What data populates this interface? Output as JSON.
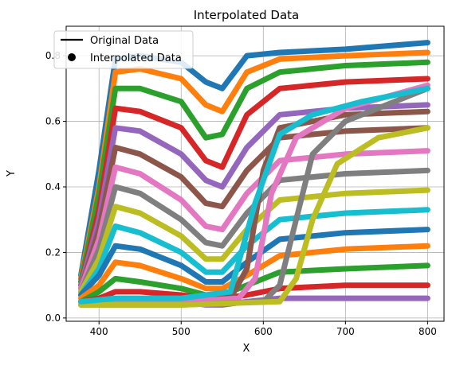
{
  "chart_data": {
    "type": "line",
    "title": "Interpolated Data",
    "xlabel": "X",
    "ylabel": "Y",
    "xlim": [
      360,
      820
    ],
    "ylim": [
      -0.01,
      0.89
    ],
    "xticks": [
      400,
      500,
      600,
      700,
      800
    ],
    "yticks": [
      0.0,
      0.2,
      0.4,
      0.6,
      0.8
    ],
    "grid": true,
    "legend": {
      "placement": "top-left",
      "entries": [
        {
          "label": "Original Data",
          "marker": "line",
          "color": "#000000"
        },
        {
          "label": "Interpolated Data",
          "marker": "dot",
          "color": "#000000"
        }
      ]
    },
    "palette": [
      "#1f77b4",
      "#ff7f0e",
      "#2ca02c",
      "#d62728",
      "#9467bd",
      "#8c564b",
      "#e377c2",
      "#7f7f7f",
      "#bcbd22",
      "#17becf"
    ],
    "x_range": [
      378,
      800
    ],
    "notes_series_count": "many overlapping spectral curves",
    "series": [
      {
        "name": "",
        "x": [
          378,
          400,
          420,
          450,
          500,
          530,
          550,
          580,
          620,
          700,
          800
        ],
        "y": [
          0.13,
          0.45,
          0.79,
          0.8,
          0.78,
          0.72,
          0.7,
          0.8,
          0.81,
          0.82,
          0.84
        ]
      },
      {
        "name": "",
        "x": [
          378,
          400,
          420,
          450,
          500,
          530,
          550,
          580,
          620,
          700,
          800
        ],
        "y": [
          0.12,
          0.4,
          0.75,
          0.76,
          0.73,
          0.65,
          0.63,
          0.75,
          0.79,
          0.8,
          0.81
        ]
      },
      {
        "name": "",
        "x": [
          378,
          400,
          420,
          450,
          500,
          530,
          550,
          580,
          620,
          700,
          800
        ],
        "y": [
          0.11,
          0.38,
          0.7,
          0.7,
          0.66,
          0.55,
          0.56,
          0.7,
          0.75,
          0.77,
          0.78
        ]
      },
      {
        "name": "",
        "x": [
          378,
          400,
          420,
          450,
          500,
          530,
          550,
          580,
          620,
          700,
          800
        ],
        "y": [
          0.1,
          0.33,
          0.64,
          0.63,
          0.58,
          0.48,
          0.46,
          0.62,
          0.7,
          0.72,
          0.73
        ]
      },
      {
        "name": "",
        "x": [
          378,
          400,
          420,
          450,
          500,
          530,
          550,
          580,
          620,
          700,
          800
        ],
        "y": [
          0.1,
          0.3,
          0.58,
          0.57,
          0.5,
          0.42,
          0.4,
          0.52,
          0.62,
          0.64,
          0.65
        ]
      },
      {
        "name": "",
        "x": [
          378,
          400,
          420,
          450,
          500,
          530,
          550,
          580,
          620,
          700,
          800
        ],
        "y": [
          0.09,
          0.27,
          0.52,
          0.5,
          0.43,
          0.35,
          0.34,
          0.45,
          0.55,
          0.57,
          0.58
        ]
      },
      {
        "name": "",
        "x": [
          378,
          400,
          420,
          450,
          500,
          530,
          550,
          580,
          620,
          700,
          800
        ],
        "y": [
          0.09,
          0.24,
          0.46,
          0.44,
          0.36,
          0.28,
          0.27,
          0.38,
          0.48,
          0.5,
          0.51
        ]
      },
      {
        "name": "",
        "x": [
          378,
          400,
          420,
          450,
          500,
          530,
          550,
          580,
          620,
          700,
          800
        ],
        "y": [
          0.08,
          0.21,
          0.4,
          0.38,
          0.3,
          0.23,
          0.22,
          0.32,
          0.42,
          0.44,
          0.45
        ]
      },
      {
        "name": "",
        "x": [
          378,
          400,
          420,
          450,
          500,
          530,
          550,
          580,
          620,
          700,
          800
        ],
        "y": [
          0.08,
          0.18,
          0.34,
          0.32,
          0.25,
          0.18,
          0.18,
          0.27,
          0.36,
          0.38,
          0.39
        ]
      },
      {
        "name": "",
        "x": [
          378,
          400,
          420,
          450,
          500,
          530,
          550,
          580,
          620,
          700,
          800
        ],
        "y": [
          0.07,
          0.15,
          0.28,
          0.26,
          0.2,
          0.14,
          0.14,
          0.22,
          0.3,
          0.32,
          0.33
        ]
      },
      {
        "name": "",
        "x": [
          378,
          400,
          420,
          450,
          500,
          530,
          550,
          580,
          620,
          700,
          800
        ],
        "y": [
          0.07,
          0.13,
          0.22,
          0.21,
          0.16,
          0.11,
          0.11,
          0.17,
          0.24,
          0.26,
          0.27
        ]
      },
      {
        "name": "",
        "x": [
          378,
          400,
          420,
          450,
          500,
          530,
          550,
          580,
          620,
          700,
          800
        ],
        "y": [
          0.06,
          0.1,
          0.17,
          0.16,
          0.12,
          0.09,
          0.09,
          0.13,
          0.19,
          0.21,
          0.22
        ]
      },
      {
        "name": "",
        "x": [
          378,
          400,
          420,
          450,
          500,
          530,
          550,
          580,
          620,
          700,
          800
        ],
        "y": [
          0.05,
          0.08,
          0.12,
          0.11,
          0.09,
          0.07,
          0.07,
          0.1,
          0.14,
          0.15,
          0.16
        ]
      },
      {
        "name": "",
        "x": [
          378,
          400,
          420,
          450,
          500,
          530,
          550,
          580,
          620,
          700,
          800
        ],
        "y": [
          0.05,
          0.06,
          0.08,
          0.08,
          0.07,
          0.06,
          0.06,
          0.07,
          0.09,
          0.1,
          0.1
        ]
      },
      {
        "name": "",
        "x": [
          378,
          400,
          420,
          450,
          500,
          530,
          550,
          580,
          620,
          700,
          800
        ],
        "y": [
          0.04,
          0.05,
          0.05,
          0.05,
          0.05,
          0.04,
          0.04,
          0.05,
          0.06,
          0.06,
          0.06
        ]
      },
      {
        "name": "",
        "x": [
          378,
          420,
          500,
          560,
          580,
          600,
          620,
          700,
          800
        ],
        "y": [
          0.05,
          0.05,
          0.05,
          0.06,
          0.15,
          0.45,
          0.58,
          0.62,
          0.63
        ]
      },
      {
        "name": "",
        "x": [
          378,
          420,
          500,
          570,
          590,
          610,
          640,
          700,
          800
        ],
        "y": [
          0.05,
          0.05,
          0.05,
          0.06,
          0.12,
          0.38,
          0.55,
          0.64,
          0.71
        ]
      },
      {
        "name": "",
        "x": [
          378,
          420,
          500,
          600,
          620,
          640,
          660,
          700,
          800
        ],
        "y": [
          0.04,
          0.04,
          0.04,
          0.05,
          0.1,
          0.3,
          0.5,
          0.6,
          0.7
        ]
      },
      {
        "name": "",
        "x": [
          378,
          420,
          500,
          620,
          640,
          660,
          690,
          740,
          800
        ],
        "y": [
          0.04,
          0.04,
          0.04,
          0.05,
          0.12,
          0.3,
          0.47,
          0.55,
          0.58
        ]
      },
      {
        "name": "",
        "x": [
          378,
          420,
          500,
          560,
          590,
          620,
          660,
          720,
          800
        ],
        "y": [
          0.05,
          0.06,
          0.06,
          0.08,
          0.35,
          0.56,
          0.62,
          0.66,
          0.7
        ]
      }
    ]
  }
}
